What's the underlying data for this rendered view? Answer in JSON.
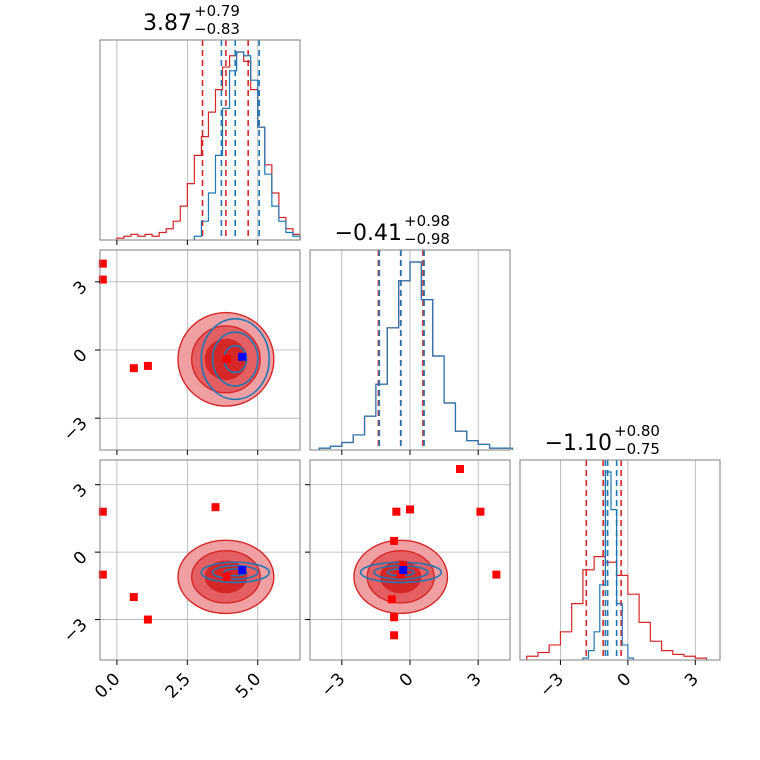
{
  "chart_data": {
    "type": "corner",
    "parameter_ranges": [
      [
        -0.6,
        6.5
      ],
      [
        -4.4,
        4.4
      ],
      [
        -4.8,
        4.1
      ]
    ],
    "titles": [
      {
        "value": "3.87",
        "plus": "+0.79",
        "minus": "−0.83"
      },
      {
        "value": "−0.41",
        "plus": "+0.98",
        "minus": "−0.98"
      },
      {
        "value": "−1.10",
        "plus": "+0.80",
        "minus": "−0.75"
      }
    ],
    "ticks": [
      {
        "values": [
          0,
          2.5,
          5
        ],
        "labels": [
          "0.0",
          "2.5",
          "5.0"
        ]
      },
      {
        "values": [
          -3,
          0,
          3
        ],
        "labels": [
          "−3",
          "0",
          "3"
        ]
      },
      {
        "values": [
          -3,
          0,
          3
        ],
        "labels": [
          "−3",
          "0",
          "3"
        ]
      }
    ],
    "grid": true,
    "colors": {
      "red": "#d62728",
      "blue": "#1f77b4",
      "fill_light": "#f0a0a2",
      "fill_mid": "#e35f61",
      "fill_dark": "#d62728",
      "true_marker": "#0000ff",
      "outlier_marker": "#ff0000"
    },
    "series": [
      {
        "color": "red",
        "quantiles": [
          [
            3.04,
            3.87,
            4.66
          ],
          [
            -1.39,
            -0.41,
            0.57
          ],
          [
            -1.85,
            -1.1,
            -0.3
          ]
        ],
        "hist": [
          {
            "x": [
              0.0,
              0.25,
              0.5,
              0.75,
              1.0,
              1.25,
              1.5,
              1.75,
              2.0,
              2.25,
              2.5,
              2.75,
              3.0,
              3.25,
              3.5,
              3.75,
              4.0,
              4.25,
              4.5,
              4.75,
              5.0,
              5.25,
              5.5,
              5.75,
              6.0,
              6.25
            ],
            "y": [
              0.01,
              0.02,
              0.03,
              0.02,
              0.03,
              0.02,
              0.04,
              0.06,
              0.1,
              0.18,
              0.3,
              0.45,
              0.55,
              0.68,
              0.8,
              0.92,
              0.98,
              1.0,
              0.95,
              0.8,
              0.6,
              0.4,
              0.25,
              0.12,
              0.06,
              0.03
            ]
          },
          {
            "x": [
              -4,
              -3.5,
              -3,
              -2.5,
              -2,
              -1.5,
              -1,
              -0.5,
              0,
              0.5,
              1,
              1.5,
              2,
              2.5,
              3,
              3.5,
              4
            ],
            "y": [
              0.01,
              0.02,
              0.04,
              0.08,
              0.18,
              0.35,
              0.65,
              0.9,
              1.0,
              0.8,
              0.5,
              0.25,
              0.1,
              0.05,
              0.03,
              0.01,
              0.01
            ]
          },
          {
            "x": [
              -4.5,
              -4,
              -3.5,
              -3,
              -2.5,
              -2,
              -1.5,
              -1,
              -0.5,
              0,
              0.5,
              1,
              1.5,
              2,
              2.5,
              3
            ],
            "y": [
              0.02,
              0.04,
              0.08,
              0.15,
              0.3,
              0.48,
              0.55,
              0.52,
              0.45,
              0.35,
              0.2,
              0.1,
              0.05,
              0.03,
              0.02,
              0.01
            ]
          }
        ],
        "markers": [
          {
            "pair": [
              0,
              1
            ],
            "points": [
              [
                -0.5,
                3.8
              ],
              [
                -0.5,
                3.1
              ],
              [
                0.6,
                -0.8
              ],
              [
                1.1,
                -0.7
              ],
              [
                3.9,
                -0.4
              ]
            ]
          },
          {
            "pair": [
              0,
              2
            ],
            "points": [
              [
                -0.5,
                1.8
              ],
              [
                -0.5,
                -1.0
              ],
              [
                0.6,
                -2.0
              ],
              [
                1.1,
                -3.0
              ],
              [
                3.5,
                2.0
              ],
              [
                3.9,
                -1.1
              ]
            ]
          },
          {
            "pair": [
              1,
              2
            ],
            "points": [
              [
                2.2,
                3.7
              ],
              [
                3.1,
                1.8
              ],
              [
                3.8,
                -1.0
              ],
              [
                -0.6,
                1.8
              ],
              [
                0.0,
                1.9
              ],
              [
                -0.7,
                0.5
              ],
              [
                -0.8,
                -2.1
              ],
              [
                -0.7,
                -2.9
              ],
              [
                -0.7,
                -3.7
              ],
              [
                -0.4,
                -1.0
              ],
              [
                -0.3,
                -0.6
              ]
            ]
          }
        ]
      },
      {
        "color": "blue",
        "quantiles": [
          [
            3.71,
            4.2,
            5.05
          ],
          [
            -1.35,
            -0.4,
            0.62
          ],
          [
            -1.0,
            -0.9,
            -0.5
          ]
        ],
        "hist": [
          {
            "x": [
              2.75,
              3.0,
              3.25,
              3.5,
              3.75,
              4.0,
              4.25,
              4.5,
              4.75,
              5.0,
              5.25,
              5.5,
              5.75,
              6.0,
              6.25
            ],
            "y": [
              0.02,
              0.1,
              0.25,
              0.45,
              0.7,
              0.9,
              1.0,
              0.98,
              0.85,
              0.6,
              0.35,
              0.18,
              0.1,
              0.04,
              0.02
            ]
          },
          {
            "x": [
              -4,
              -3.5,
              -3,
              -2.5,
              -2,
              -1.5,
              -1,
              -0.5,
              0,
              0.5,
              1,
              1.5,
              2,
              2.5,
              3,
              3.5,
              4
            ],
            "y": [
              0.01,
              0.02,
              0.04,
              0.08,
              0.18,
              0.35,
              0.65,
              0.9,
              1.0,
              0.8,
              0.5,
              0.25,
              0.1,
              0.05,
              0.03,
              0.01,
              0.01
            ]
          },
          {
            "x": [
              -2.0,
              -1.75,
              -1.5,
              -1.25,
              -1.0,
              -0.75,
              -0.5,
              -0.25,
              0.0
            ],
            "y": [
              0.01,
              0.05,
              0.15,
              0.4,
              1.0,
              0.8,
              0.3,
              0.08,
              0.01
            ]
          }
        ],
        "markers": [
          {
            "pair": [
              0,
              1
            ],
            "points": [
              [
                4.45,
                -0.3
              ]
            ]
          },
          {
            "pair": [
              0,
              2
            ],
            "points": [
              [
                4.45,
                -0.8
              ]
            ]
          },
          {
            "pair": [
              1,
              2
            ],
            "points": [
              [
                -0.3,
                -0.8
              ]
            ]
          }
        ]
      }
    ]
  }
}
